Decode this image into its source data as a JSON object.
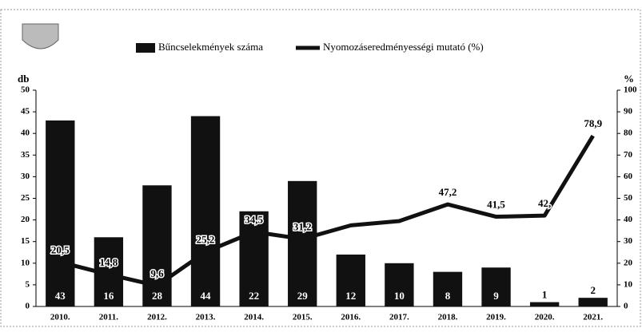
{
  "chart_data": {
    "type": "bar-line",
    "y_label": "db",
    "y2_label": "%",
    "categories": [
      "2010.",
      "2011.",
      "2012.",
      "2013.",
      "2014.",
      "2015.",
      "2016.",
      "2017.",
      "2018.",
      "2019.",
      "2020.",
      "2021."
    ],
    "series": [
      {
        "name": "Bűncselekmények száma",
        "type": "bar",
        "color": "#111111",
        "values": [
          43,
          16,
          28,
          44,
          22,
          29,
          12,
          10,
          8,
          9,
          1,
          2
        ]
      },
      {
        "name": "Nyomozáseredményességi mutató (%)",
        "type": "line",
        "axis": "y2",
        "color": "#111111",
        "values": [
          20.5,
          14.8,
          9.6,
          25.2,
          34.5,
          31.2,
          37.5,
          39.5,
          47.2,
          41.5,
          42,
          78.9
        ],
        "value_labels": [
          "20,5",
          "14,8",
          "9,6",
          "25,2",
          "34,5",
          "31,2",
          null,
          null,
          "47,2",
          "41,5",
          "42,",
          "78,9"
        ]
      }
    ],
    "ylim": [
      0,
      50
    ],
    "yticks": [
      0,
      5,
      10,
      15,
      20,
      25,
      30,
      35,
      40,
      45,
      50
    ],
    "y2lim": [
      0,
      100
    ],
    "y2ticks": [
      0,
      10,
      20,
      30,
      40,
      50,
      60,
      70,
      80,
      90,
      100
    ],
    "legend": "top"
  }
}
